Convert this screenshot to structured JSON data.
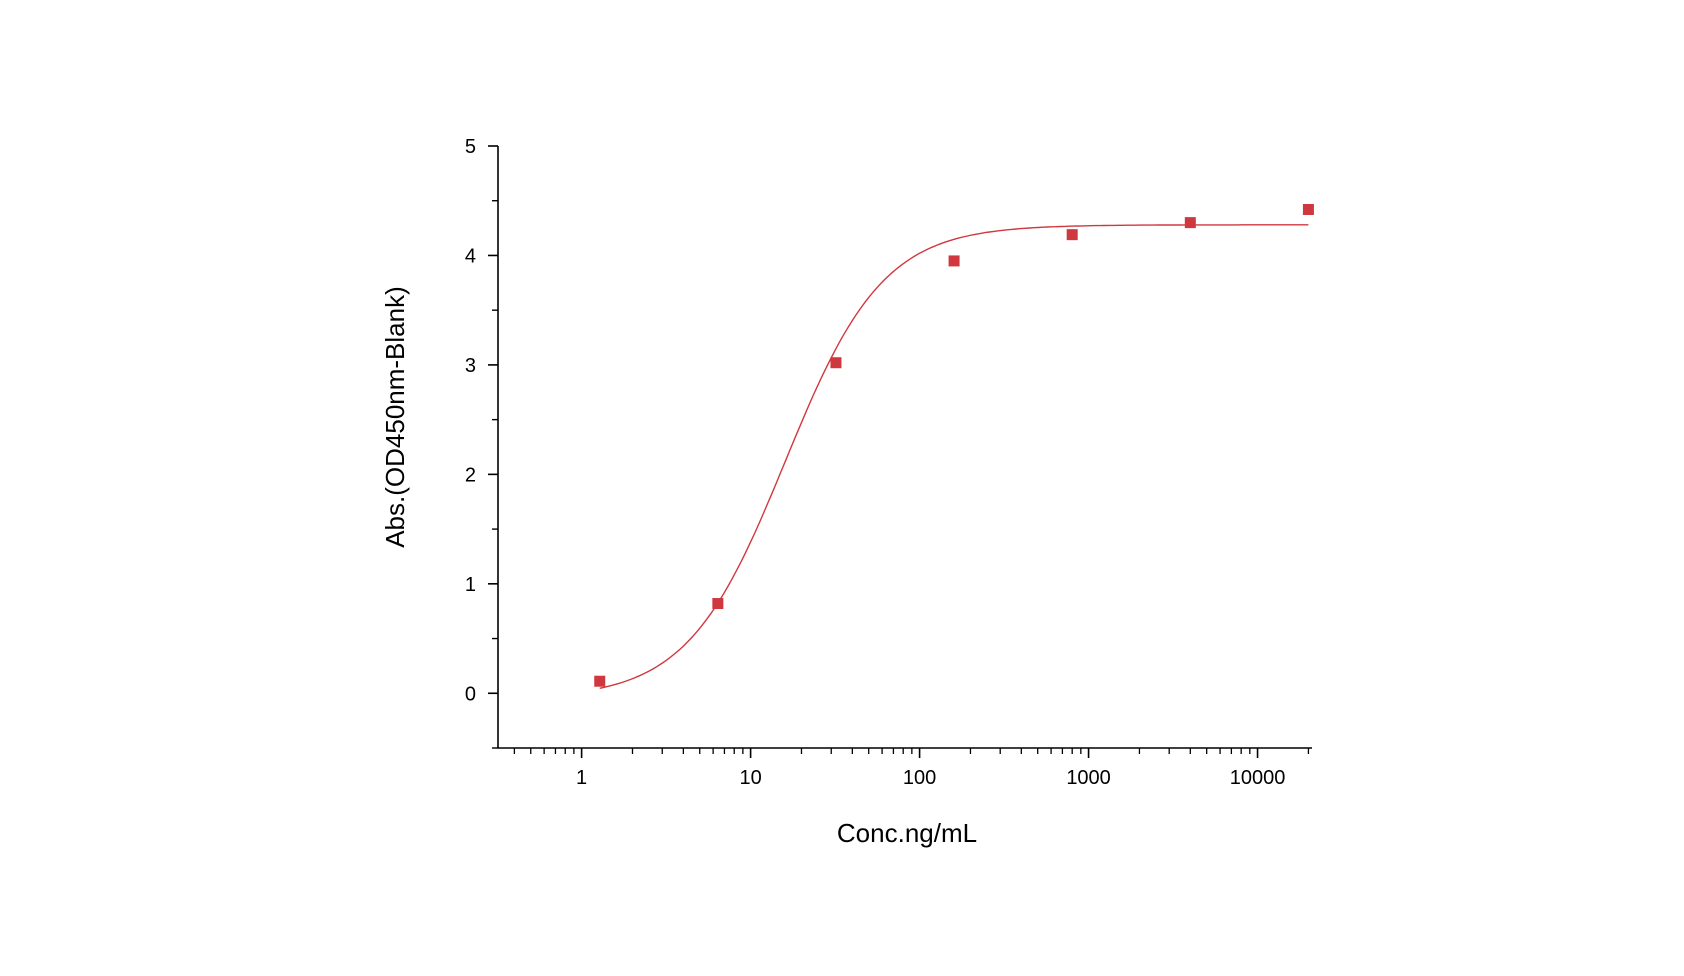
{
  "chart_data": {
    "type": "scatter",
    "title": "",
    "xlabel": "Conc.ng/mL",
    "ylabel": "Abs.(OD450nm-Blank)",
    "x_scale": "log",
    "xlim": [
      0.32,
      21000
    ],
    "ylim": [
      -0.5,
      5
    ],
    "x_ticks": [
      {
        "value": 1,
        "label": "1"
      },
      {
        "value": 10,
        "label": "10"
      },
      {
        "value": 100,
        "label": "100"
      },
      {
        "value": 1000,
        "label": "1000"
      },
      {
        "value": 10000,
        "label": "10000"
      }
    ],
    "y_ticks": [
      {
        "value": 0,
        "label": "0"
      },
      {
        "value": 1,
        "label": "1"
      },
      {
        "value": 2,
        "label": "2"
      },
      {
        "value": 3,
        "label": "3"
      },
      {
        "value": 4,
        "label": "4"
      },
      {
        "value": 5,
        "label": "5"
      }
    ],
    "grid": false,
    "legend": "none",
    "colors": {
      "series": "#d0383f",
      "axis": "#000000"
    },
    "series": [
      {
        "points": [
          {
            "x": 1.28,
            "y": 0.11
          },
          {
            "x": 6.4,
            "y": 0.82
          },
          {
            "x": 32,
            "y": 3.02
          },
          {
            "x": 160,
            "y": 3.95
          },
          {
            "x": 800,
            "y": 4.19
          },
          {
            "x": 4000,
            "y": 4.3
          },
          {
            "x": 20000,
            "y": 4.42
          }
        ],
        "fit": {
          "type": "4PL",
          "bottom": -0.05,
          "top": 4.28,
          "ec50": 16,
          "hill": 1.5
        }
      }
    ]
  }
}
